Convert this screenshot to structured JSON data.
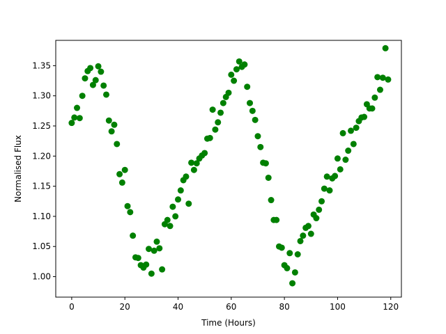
{
  "chart_data": {
    "type": "scatter",
    "title": "",
    "xlabel": "Time (Hours)",
    "ylabel": "Normalised Flux",
    "xlim": [
      -6,
      124
    ],
    "ylim": [
      0.966,
      1.392
    ],
    "xticks": [
      0,
      20,
      40,
      60,
      80,
      100,
      120
    ],
    "yticks": [
      1.0,
      1.05,
      1.1,
      1.15,
      1.2,
      1.25,
      1.3,
      1.35
    ],
    "xtick_labels": [
      "0",
      "20",
      "40",
      "60",
      "80",
      "100",
      "120"
    ],
    "ytick_labels": [
      "1.00",
      "1.05",
      "1.10",
      "1.15",
      "1.20",
      "1.25",
      "1.30",
      "1.35"
    ],
    "grid": false,
    "legend": "none",
    "marker_color": "#008000",
    "series": [
      {
        "x": [
          0,
          1,
          2,
          3,
          4,
          5,
          6,
          7,
          8,
          9,
          10,
          11,
          12,
          13,
          14,
          15,
          16,
          17,
          18,
          19,
          20,
          21,
          22,
          23,
          24,
          25,
          26,
          27,
          28,
          29,
          30,
          31,
          32,
          33,
          34,
          35,
          36,
          37,
          38,
          39,
          40,
          41,
          42,
          43,
          44,
          45,
          46,
          47,
          48,
          49,
          50,
          51,
          52,
          53,
          54,
          55,
          56,
          57,
          58,
          59,
          60,
          61,
          62,
          63,
          64,
          65,
          66,
          67,
          68,
          69,
          70,
          71,
          72,
          73,
          74,
          75,
          76,
          77,
          78,
          79,
          80,
          81,
          82,
          83,
          84,
          85,
          86,
          87,
          88,
          89,
          90,
          91,
          92,
          93,
          94,
          95,
          96,
          97,
          98,
          99,
          100,
          101,
          102,
          103,
          104,
          105,
          106,
          107,
          108,
          109,
          110,
          111,
          112,
          113,
          114,
          115,
          116,
          117,
          118,
          119
        ],
        "y": [
          1.255,
          1.264,
          1.28,
          1.263,
          1.3,
          1.329,
          1.341,
          1.346,
          1.318,
          1.326,
          1.349,
          1.34,
          1.317,
          1.302,
          1.259,
          1.241,
          1.252,
          1.22,
          1.17,
          1.156,
          1.177,
          1.117,
          1.107,
          1.068,
          1.032,
          1.031,
          1.019,
          1.015,
          1.02,
          1.046,
          1.005,
          1.043,
          1.058,
          1.047,
          1.012,
          1.087,
          1.094,
          1.084,
          1.116,
          1.1,
          1.128,
          1.143,
          1.16,
          1.166,
          1.121,
          1.189,
          1.177,
          1.188,
          1.196,
          1.201,
          1.205,
          1.229,
          1.23,
          1.277,
          1.244,
          1.256,
          1.272,
          1.288,
          1.298,
          1.305,
          1.335,
          1.325,
          1.344,
          1.357,
          1.348,
          1.352,
          1.315,
          1.288,
          1.275,
          1.26,
          1.233,
          1.215,
          1.189,
          1.188,
          1.164,
          1.127,
          1.094,
          1.094,
          1.05,
          1.048,
          1.019,
          1.014,
          1.039,
          0.989,
          1.007,
          1.037,
          1.059,
          1.068,
          1.081,
          1.084,
          1.071,
          1.103,
          1.097,
          1.111,
          1.125,
          1.146,
          1.166,
          1.143,
          1.163,
          1.167,
          1.196,
          1.178,
          1.238,
          1.194,
          1.209,
          1.242,
          1.22,
          1.247,
          1.258,
          1.264,
          1.265,
          1.286,
          1.279,
          1.279,
          1.297,
          1.331,
          1.31,
          1.33,
          1.379,
          1.327
        ]
      }
    ]
  }
}
